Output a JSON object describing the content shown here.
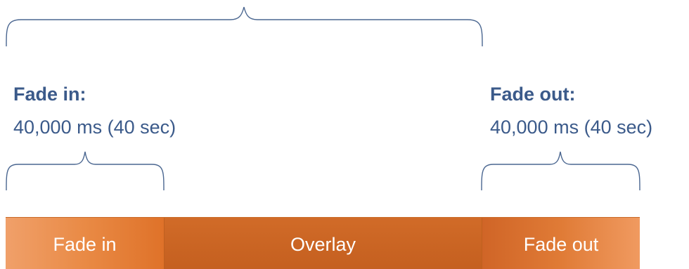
{
  "fade_in": {
    "title": "Fade in:",
    "value": "40,000 ms (40 sec)"
  },
  "fade_out": {
    "title": "Fade out:",
    "value": "40,000 ms (40 sec)"
  },
  "timeline": {
    "segments": [
      "Fade in",
      "Overlay",
      "Fade out"
    ]
  },
  "colors": {
    "label_text": "#3b5a8a",
    "brace_stroke": "#4a6690",
    "segment_orange": "#df7229",
    "segment_text": "#ffffff"
  }
}
